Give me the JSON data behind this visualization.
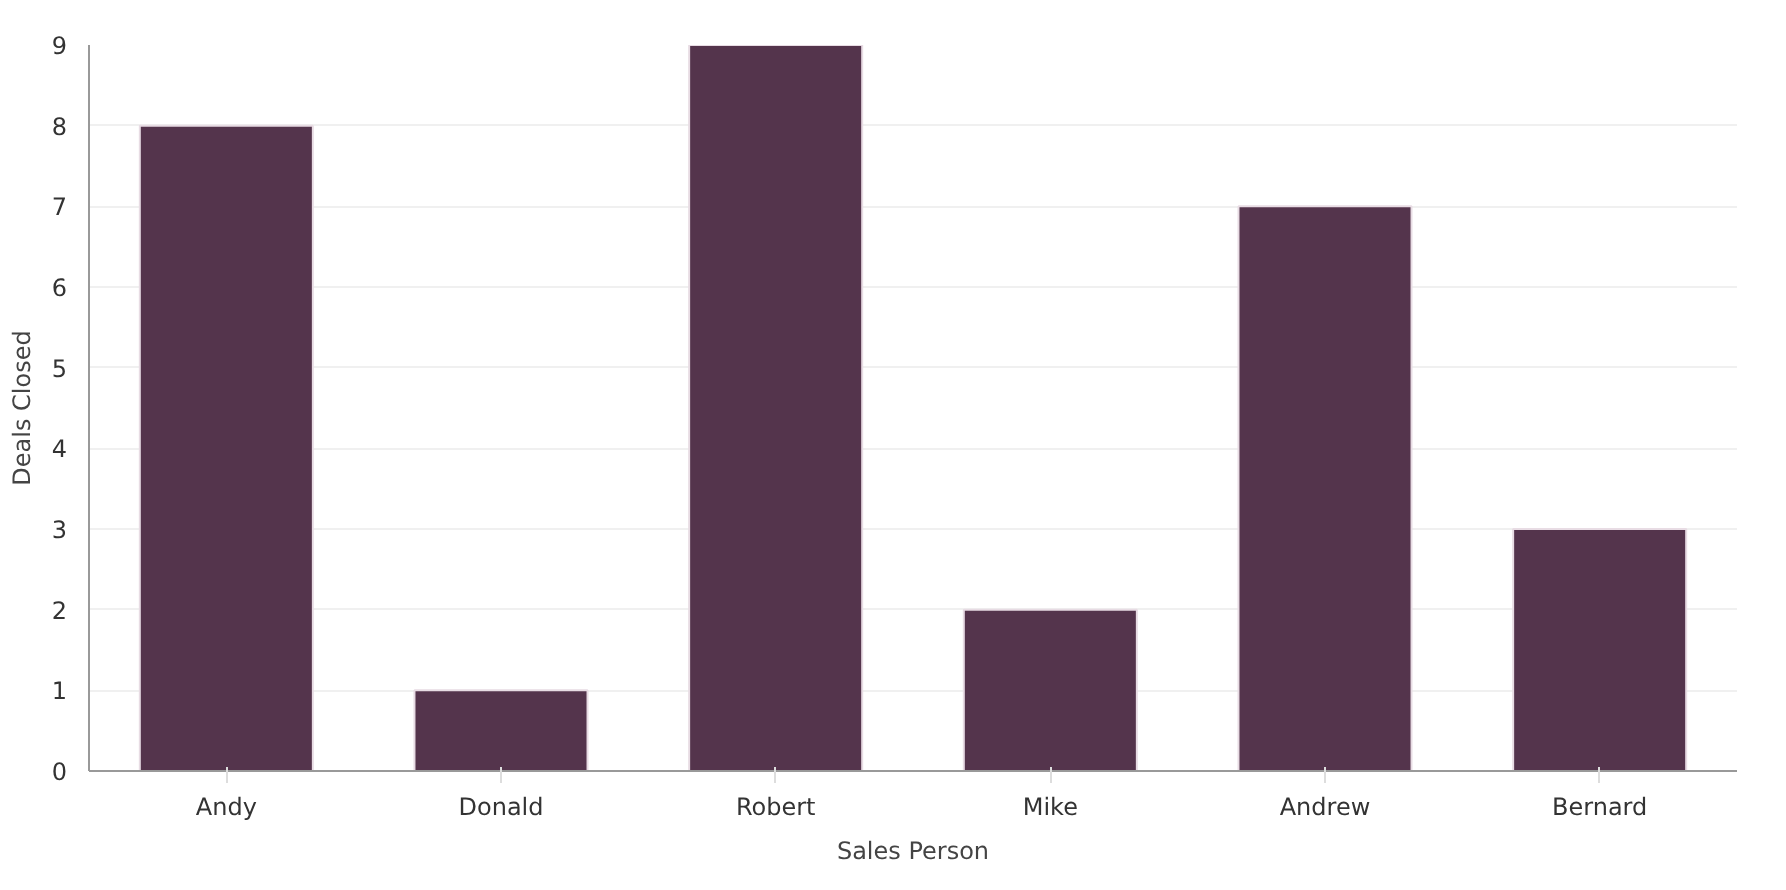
{
  "chart_data": {
    "type": "bar",
    "xlabel": "Sales Person",
    "ylabel": "Deals Closed",
    "categories": [
      "Andy",
      "Donald",
      "Robert",
      "Mike",
      "Andrew",
      "Bernard"
    ],
    "values": [
      8,
      1,
      9,
      2,
      7,
      3
    ],
    "color": "#54344c",
    "ylim": [
      0,
      9
    ],
    "yticks": [
      0,
      1,
      2,
      3,
      4,
      5,
      6,
      7,
      8,
      9
    ],
    "grid": "y"
  }
}
